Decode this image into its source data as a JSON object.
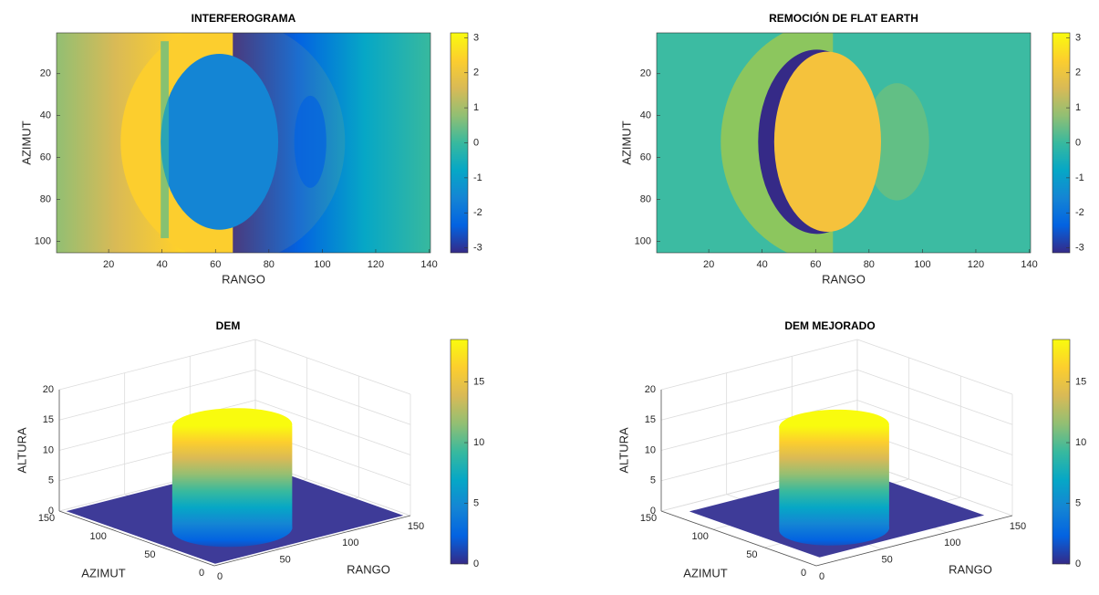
{
  "chart_data": [
    {
      "type": "heatmap",
      "title": "INTERFEROGRAMA",
      "xlabel": "RANGO",
      "ylabel": "AZIMUT",
      "xlim": [
        1,
        140
      ],
      "xticks": [
        20,
        40,
        60,
        80,
        100,
        120,
        140
      ],
      "ylim": [
        1,
        105
      ],
      "yticks": [
        20,
        40,
        60,
        80,
        100
      ],
      "clim": [
        -3.14,
        3.14
      ],
      "cticks": [
        -3,
        -2,
        -1,
        0,
        1,
        2,
        3
      ]
    },
    {
      "type": "heatmap",
      "title": "REMOCIÓN DE FLAT EARTH",
      "xlabel": "RANGO",
      "ylabel": "AZIMUT",
      "xlim": [
        1,
        140
      ],
      "xticks": [
        20,
        40,
        60,
        80,
        100,
        120,
        140
      ],
      "ylim": [
        1,
        105
      ],
      "yticks": [
        20,
        40,
        60,
        80,
        100
      ],
      "clim": [
        -3.14,
        3.14
      ],
      "cticks": [
        -3,
        -2,
        -1,
        0,
        1,
        2,
        3
      ]
    },
    {
      "type": "surface",
      "title": "DEM",
      "xlabel": "RANGO",
      "ylabel": "AZIMUT",
      "zlabel": "ALTURA",
      "xlim": [
        0,
        150
      ],
      "xticks": [
        0,
        50,
        100,
        150
      ],
      "ylim": [
        0,
        150
      ],
      "yticks": [
        0,
        50,
        100,
        150
      ],
      "zlim": [
        0,
        20
      ],
      "zticks": [
        0,
        5,
        10,
        15,
        20
      ],
      "clim": [
        0,
        18.5
      ],
      "cticks": [
        0,
        5,
        10,
        15
      ]
    },
    {
      "type": "surface",
      "title": "DEM MEJORADO",
      "xlabel": "RANGO",
      "ylabel": "AZIMUT",
      "zlabel": "ALTURA",
      "xlim": [
        0,
        150
      ],
      "xticks": [
        0,
        50,
        100,
        150
      ],
      "ylim": [
        0,
        150
      ],
      "yticks": [
        0,
        50,
        100,
        150
      ],
      "zlim": [
        0,
        20
      ],
      "zticks": [
        0,
        5,
        10,
        15,
        20
      ],
      "clim": [
        0,
        18.5
      ],
      "cticks": [
        0,
        5,
        10,
        15
      ]
    }
  ]
}
